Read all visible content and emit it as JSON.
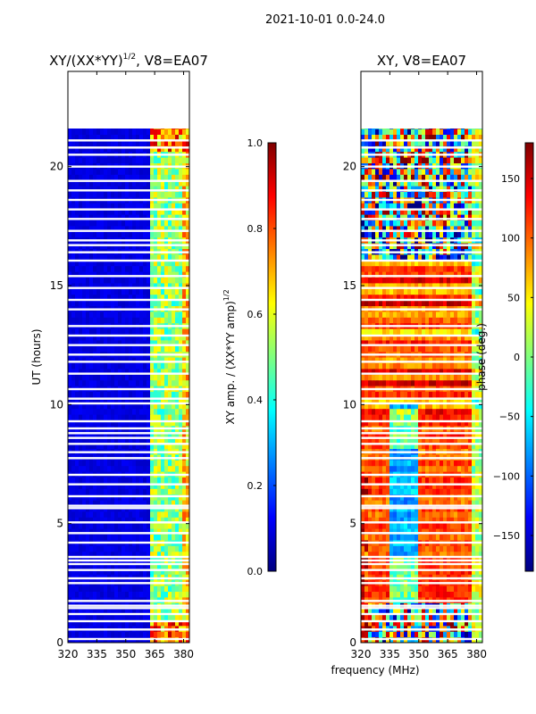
{
  "suptitle": "2021-10-01 0.0-24.0",
  "colormap": [
    "#00007f",
    "#0000ff",
    "#007fff",
    "#00ffff",
    "#7fff7f",
    "#ffff00",
    "#ff7f00",
    "#ff0000",
    "#7f0000"
  ],
  "chart_data": [
    {
      "type": "heatmap",
      "id": "amp",
      "title": "XY/(XX*YY)",
      "title_exponent": "1/2",
      "title_suffix": ", V8=EA07",
      "xlabel": "",
      "ylabel": "UT (hours)",
      "xlim": [
        320,
        383
      ],
      "ylim": [
        0,
        24
      ],
      "xticks": [
        320,
        335,
        350,
        365,
        380
      ],
      "yticks": [
        0,
        5,
        10,
        15,
        20
      ],
      "data_extent_hours": [
        0,
        21.6
      ],
      "noisy_band_start_mhz": 361,
      "colorbar": {
        "label": "XY amp. / (XX*YY amp)",
        "label_exponent": "1/2",
        "range": [
          0.0,
          1.0
        ],
        "ticks": [
          "0.0",
          "0.2",
          "0.4",
          "0.6",
          "0.8",
          "1.0"
        ]
      },
      "flagged_hours": [
        0.15,
        0.55,
        0.9,
        1.2,
        1.45,
        1.55,
        1.75,
        2.5,
        2.7,
        3.05,
        3.3,
        3.45,
        3.6,
        4.2,
        4.6,
        5.05,
        5.65,
        5.75,
        6.15,
        6.65,
        7.05,
        7.75,
        8.0,
        8.35,
        8.6,
        8.8,
        9.0,
        9.3,
        10.05,
        10.25,
        10.65,
        11.3,
        11.8,
        12.1,
        12.5,
        12.9,
        13.3,
        14.0,
        14.4,
        14.9,
        15.4,
        16.05,
        16.4,
        16.7,
        16.9,
        17.3,
        17.8,
        18.2,
        18.6,
        19.0,
        19.4,
        20.0,
        20.5,
        20.8,
        21.1
      ]
    },
    {
      "type": "heatmap",
      "id": "phase",
      "title": "XY, V8=EA07",
      "xlabel": "frequency (MHz)",
      "ylabel": "",
      "xlim": [
        320,
        383
      ],
      "ylim": [
        0,
        24
      ],
      "xticks": [
        320,
        335,
        350,
        365,
        380
      ],
      "yticks": [
        0,
        5,
        10,
        15,
        20
      ],
      "data_extent_hours": [
        0,
        21.6
      ],
      "colorbar": {
        "label": "phase (deg.)",
        "range": [
          -180,
          180
        ],
        "ticks": [
          "150",
          "100",
          "50",
          "0",
          "−50",
          "−100",
          "−150"
        ],
        "tick_values": [
          150,
          100,
          50,
          0,
          -50,
          -100,
          -150
        ]
      },
      "flagged_hours": [
        0.15,
        0.55,
        0.9,
        1.2,
        1.45,
        1.55,
        1.75,
        2.5,
        2.7,
        3.05,
        3.3,
        3.45,
        3.6,
        4.2,
        4.6,
        5.05,
        5.65,
        5.75,
        6.15,
        6.65,
        7.05,
        7.75,
        8.0,
        8.35,
        8.6,
        8.8,
        9.0,
        9.3,
        10.05,
        10.25,
        10.65,
        11.3,
        11.8,
        12.1,
        12.5,
        12.9,
        13.3,
        14.0,
        14.4,
        14.9,
        15.4,
        16.05,
        16.4,
        16.7,
        16.9,
        17.3,
        17.8,
        18.2,
        18.6,
        19.0,
        19.4,
        20.0,
        20.5,
        20.8,
        21.1
      ]
    }
  ]
}
